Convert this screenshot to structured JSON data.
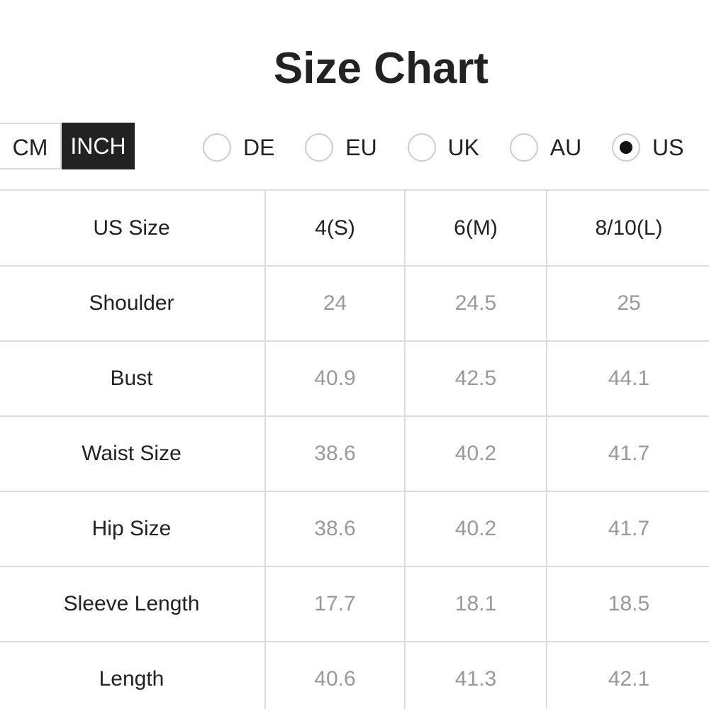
{
  "title": "Size Chart",
  "units": {
    "options": [
      "CM",
      "INCH"
    ],
    "selected": 1
  },
  "regions": {
    "options": [
      "DE",
      "EU",
      "UK",
      "AU",
      "US"
    ],
    "selected": 4
  },
  "table": {
    "header": [
      "US Size",
      "4(S)",
      "6(M)",
      "8/10(L)"
    ],
    "rows": [
      [
        "Shoulder",
        "24",
        "24.5",
        "25"
      ],
      [
        "Bust",
        "40.9",
        "42.5",
        "44.1"
      ],
      [
        "Waist Size",
        "38.6",
        "40.2",
        "41.7"
      ],
      [
        "Hip Size",
        "38.6",
        "40.2",
        "41.7"
      ],
      [
        "Sleeve Length",
        "17.7",
        "18.1",
        "18.5"
      ],
      [
        "Length",
        "40.6",
        "41.3",
        "42.1"
      ]
    ]
  }
}
